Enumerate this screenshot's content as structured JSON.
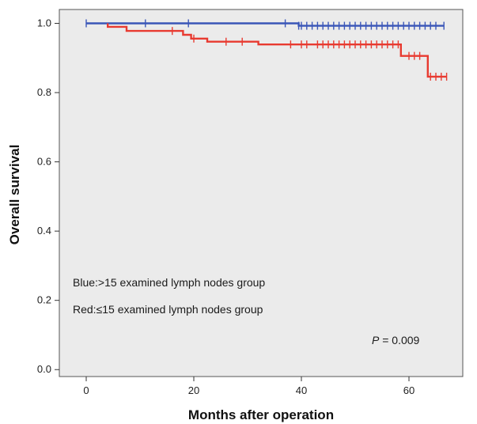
{
  "chart_data": {
    "type": "line",
    "xlabel": "Months after operation",
    "ylabel": "Overall survival",
    "xlim": [
      -5,
      70
    ],
    "ylim": [
      -0.02,
      1.04
    ],
    "x_ticks": [
      0,
      20,
      40,
      60
    ],
    "y_ticks": [
      0.0,
      0.2,
      0.4,
      0.6,
      0.8,
      1.0
    ],
    "x_tick_labels": [
      "0",
      "20",
      "40",
      "60"
    ],
    "y_tick_labels": [
      "0.0",
      "0.2",
      "0.4",
      "0.6",
      "0.8",
      "1.0"
    ],
    "background": "#ebebeb",
    "step": true,
    "series": [
      {
        "color": "#3a56b8",
        "points": [
          [
            0,
            1.0
          ],
          [
            39.5,
            1.0
          ],
          [
            39.5,
            0.993
          ],
          [
            66.5,
            0.993
          ]
        ],
        "censored": [
          0,
          11,
          19,
          37,
          39.5,
          40,
          41,
          42,
          43,
          44,
          45,
          46,
          47,
          48,
          49,
          50,
          51,
          52,
          53,
          54,
          55,
          56,
          57,
          58,
          59,
          60,
          61,
          62,
          63,
          64,
          65,
          66.5
        ]
      },
      {
        "color": "#e83a30",
        "points": [
          [
            4,
            1.0
          ],
          [
            4,
            0.99
          ],
          [
            7.5,
            0.99
          ],
          [
            7.5,
            0.978
          ],
          [
            18,
            0.978
          ],
          [
            18,
            0.967
          ],
          [
            19.5,
            0.967
          ],
          [
            19.5,
            0.956
          ],
          [
            22.5,
            0.956
          ],
          [
            22.5,
            0.947
          ],
          [
            32,
            0.947
          ],
          [
            32,
            0.939
          ],
          [
            58.5,
            0.939
          ],
          [
            58.5,
            0.906
          ],
          [
            63.5,
            0.906
          ],
          [
            63.5,
            0.846
          ],
          [
            67,
            0.846
          ]
        ],
        "censored": [
          16,
          20,
          26,
          29,
          38,
          40,
          41,
          43,
          44,
          45,
          46,
          47,
          48,
          49,
          50,
          51,
          52,
          53,
          54,
          55,
          56,
          57,
          58,
          60,
          61,
          62,
          64,
          65,
          66,
          67
        ]
      }
    ],
    "annotations": {
      "blue": "Blue:>15 examined lymph nodes group",
      "red": "Red:≤15 examined lymph nodes group",
      "p_label": "P",
      "p_value": " = 0.009"
    }
  }
}
